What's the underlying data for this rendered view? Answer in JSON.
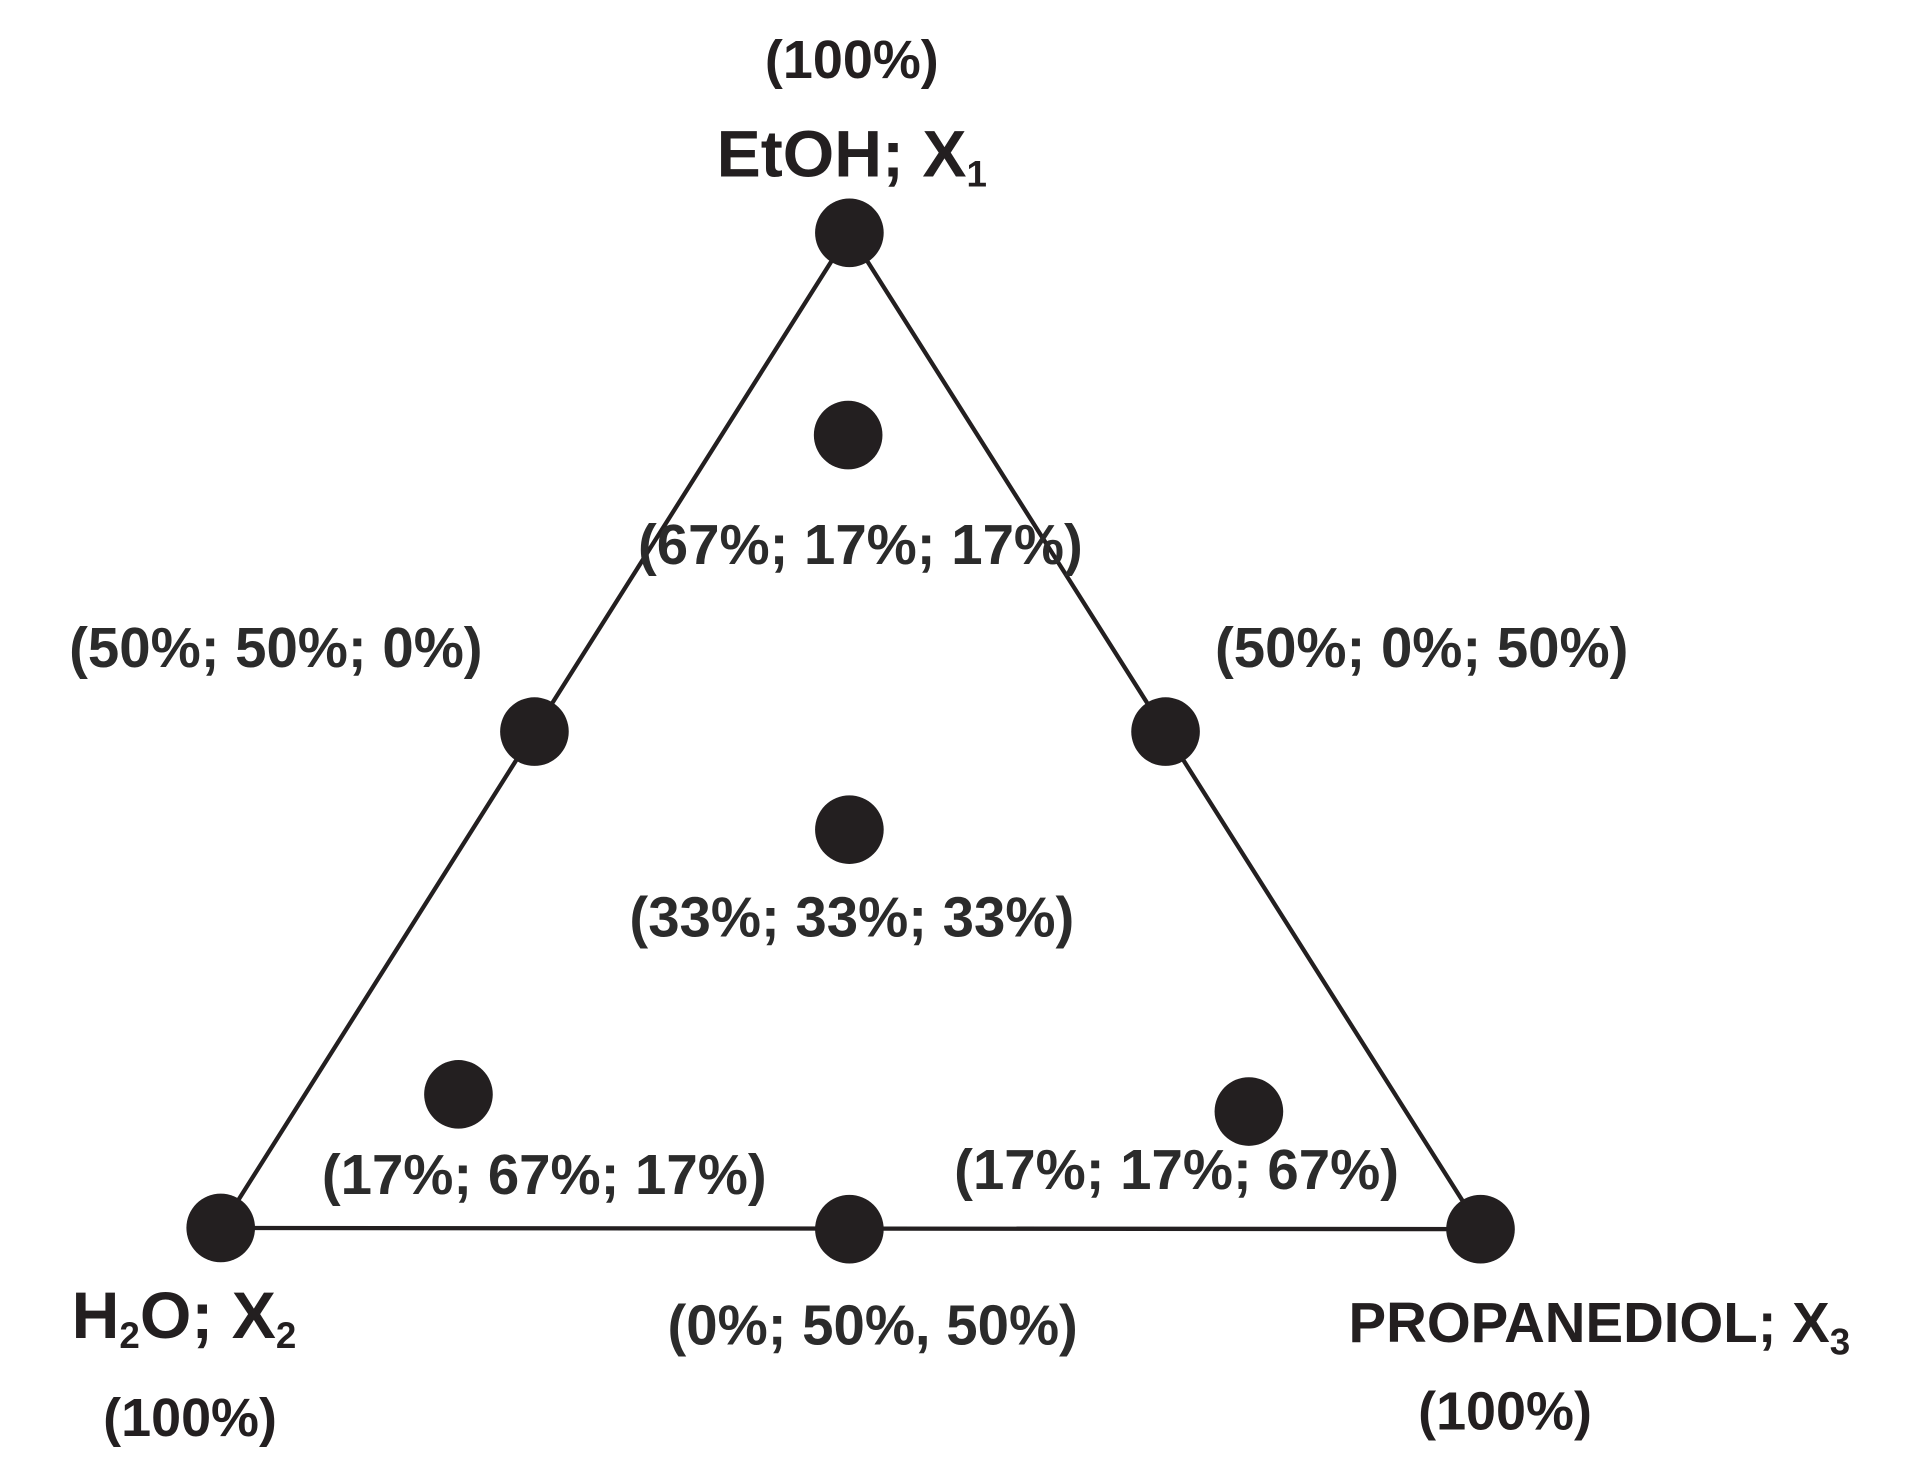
{
  "vertices": [
    {
      "label_parts": [
        "EtOH; X",
        "1"
      ],
      "percent": "(100%)"
    },
    {
      "label_parts": [
        "H",
        "2",
        "O; X",
        "2"
      ],
      "percent": "(100%)"
    },
    {
      "label_parts": [
        "PROPANEDIOL; X",
        "3"
      ],
      "percent": "(100%)"
    }
  ],
  "points": [
    {
      "label": "(67%; 17%; 17%)"
    },
    {
      "label": "(50%; 50%; 0%)"
    },
    {
      "label": "(50%; 0%; 50%)"
    },
    {
      "label": "(33%; 33%; 33%)"
    },
    {
      "label": "(17%; 67%; 17%)"
    },
    {
      "label": "(17%; 17%; 67%)"
    },
    {
      "label": "(0%; 50%, 50%)"
    }
  ]
}
